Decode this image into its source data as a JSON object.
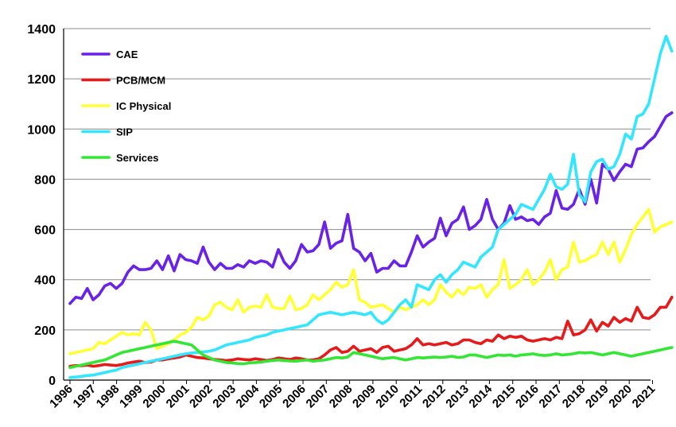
{
  "chart_data": {
    "type": "line",
    "title": "",
    "xlabel": "",
    "ylabel": "",
    "ylim": [
      0,
      1400
    ],
    "yticks": [
      "0",
      "200",
      "400",
      "600",
      "800",
      "1000",
      "1200",
      "1400"
    ],
    "xticks": [
      "1996",
      "1997",
      "1998",
      "1999",
      "2000",
      "2001",
      "2002",
      "2003",
      "2004",
      "2005",
      "2006",
      "2007",
      "2008",
      "2009",
      "2010",
      "2011",
      "2012",
      "2013",
      "2014",
      "2015",
      "2016",
      "2017",
      "2018",
      "2019",
      "2020",
      "2021"
    ],
    "x_start_year": 1996,
    "points_per_year": 4,
    "grid": "horizontal",
    "legend_position": "top-left",
    "series": [
      {
        "name": "CAE",
        "color": "#6a22e6",
        "values": [
          305,
          330,
          325,
          365,
          320,
          340,
          375,
          385,
          365,
          385,
          430,
          455,
          440,
          440,
          445,
          475,
          440,
          495,
          435,
          500,
          480,
          475,
          465,
          530,
          470,
          440,
          465,
          445,
          445,
          460,
          450,
          475,
          465,
          475,
          470,
          450,
          520,
          470,
          445,
          475,
          540,
          510,
          515,
          540,
          630,
          525,
          545,
          555,
          660,
          525,
          510,
          475,
          505,
          430,
          445,
          445,
          475,
          455,
          455,
          510,
          575,
          530,
          550,
          565,
          645,
          575,
          625,
          640,
          690,
          600,
          615,
          640,
          720,
          640,
          600,
          625,
          695,
          640,
          650,
          635,
          640,
          620,
          650,
          665,
          755,
          685,
          680,
          700,
          760,
          700,
          800,
          705,
          860,
          840,
          795,
          830,
          860,
          850,
          920,
          925,
          950,
          970,
          1010,
          1050,
          1065
        ]
      },
      {
        "name": "PCB/MCM",
        "color": "#e61a1a",
        "values": [
          55,
          58,
          57,
          60,
          55,
          58,
          62,
          60,
          58,
          62,
          68,
          72,
          75,
          70,
          72,
          80,
          80,
          85,
          88,
          92,
          100,
          95,
          90,
          88,
          85,
          82,
          80,
          78,
          80,
          85,
          82,
          80,
          85,
          82,
          78,
          82,
          88,
          85,
          82,
          88,
          85,
          80,
          80,
          85,
          100,
          120,
          130,
          110,
          115,
          135,
          115,
          120,
          125,
          110,
          130,
          135,
          115,
          120,
          125,
          140,
          165,
          140,
          145,
          140,
          145,
          150,
          140,
          145,
          160,
          160,
          150,
          145,
          160,
          155,
          180,
          165,
          175,
          170,
          175,
          160,
          155,
          160,
          165,
          160,
          170,
          165,
          235,
          180,
          185,
          200,
          240,
          195,
          230,
          215,
          250,
          230,
          245,
          235,
          290,
          250,
          245,
          260,
          290,
          290,
          330
        ]
      },
      {
        "name": "IC Physical",
        "color": "#ffff33",
        "values": [
          105,
          110,
          115,
          120,
          125,
          150,
          145,
          160,
          175,
          190,
          180,
          185,
          180,
          230,
          200,
          125,
          135,
          145,
          160,
          180,
          190,
          210,
          250,
          240,
          255,
          300,
          310,
          290,
          280,
          320,
          270,
          290,
          295,
          290,
          340,
          290,
          285,
          285,
          335,
          280,
          285,
          300,
          340,
          320,
          340,
          360,
          390,
          370,
          380,
          440,
          320,
          310,
          290,
          295,
          300,
          285,
          270,
          290,
          280,
          290,
          300,
          320,
          300,
          320,
          380,
          350,
          330,
          360,
          340,
          370,
          365,
          380,
          330,
          360,
          380,
          480,
          365,
          380,
          400,
          440,
          380,
          400,
          430,
          480,
          400,
          440,
          450,
          550,
          470,
          475,
          490,
          500,
          550,
          500,
          550,
          470,
          520,
          580,
          620,
          650,
          680,
          590,
          610,
          620,
          630
        ]
      },
      {
        "name": "SIP",
        "color": "#33e6ff",
        "values": [
          10,
          12,
          15,
          18,
          20,
          25,
          30,
          35,
          40,
          50,
          55,
          60,
          65,
          70,
          75,
          80,
          85,
          90,
          95,
          100,
          105,
          108,
          110,
          112,
          115,
          120,
          130,
          140,
          145,
          150,
          155,
          160,
          170,
          175,
          180,
          190,
          195,
          200,
          205,
          210,
          215,
          220,
          240,
          260,
          265,
          270,
          265,
          260,
          265,
          270,
          265,
          260,
          270,
          240,
          225,
          240,
          270,
          300,
          320,
          290,
          380,
          370,
          360,
          400,
          420,
          390,
          420,
          440,
          470,
          460,
          450,
          490,
          510,
          530,
          600,
          620,
          640,
          660,
          700,
          690,
          680,
          720,
          760,
          820,
          770,
          760,
          780,
          900,
          740,
          710,
          830,
          870,
          880,
          840,
          850,
          900,
          980,
          960,
          1050,
          1060,
          1100,
          1200,
          1300,
          1370,
          1310
        ]
      },
      {
        "name": "Services",
        "color": "#33e633",
        "values": [
          50,
          55,
          60,
          65,
          70,
          75,
          80,
          90,
          100,
          110,
          115,
          120,
          125,
          130,
          135,
          140,
          145,
          150,
          155,
          150,
          145,
          140,
          120,
          100,
          90,
          80,
          75,
          70,
          68,
          66,
          65,
          68,
          70,
          72,
          75,
          78,
          80,
          78,
          76,
          75,
          78,
          80,
          75,
          78,
          80,
          85,
          90,
          88,
          92,
          110,
          105,
          100,
          95,
          90,
          85,
          88,
          90,
          85,
          80,
          85,
          90,
          88,
          90,
          92,
          90,
          92,
          95,
          90,
          92,
          100,
          100,
          95,
          90,
          95,
          100,
          98,
          100,
          95,
          100,
          102,
          105,
          100,
          98,
          100,
          105,
          100,
          102,
          105,
          110,
          108,
          110,
          105,
          100,
          105,
          110,
          105,
          100,
          95,
          100,
          105,
          110,
          115,
          120,
          125,
          130
        ]
      }
    ]
  }
}
